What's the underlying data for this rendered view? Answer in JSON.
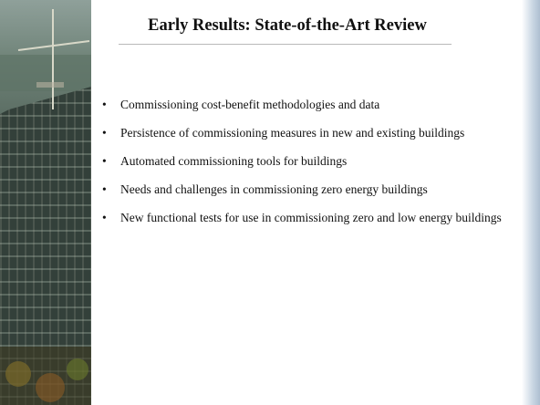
{
  "slide": {
    "title": "Early Results: State-of-the-Art Review",
    "bullets": [
      "Commissioning cost-benefit methodologies and data",
      "Persistence of commissioning measures in new and existing buildings",
      "Automated commissioning tools for buildings",
      "Needs and challenges in commissioning zero energy buildings",
      "New functional tests for use in commissioning zero and low energy buildings"
    ]
  }
}
